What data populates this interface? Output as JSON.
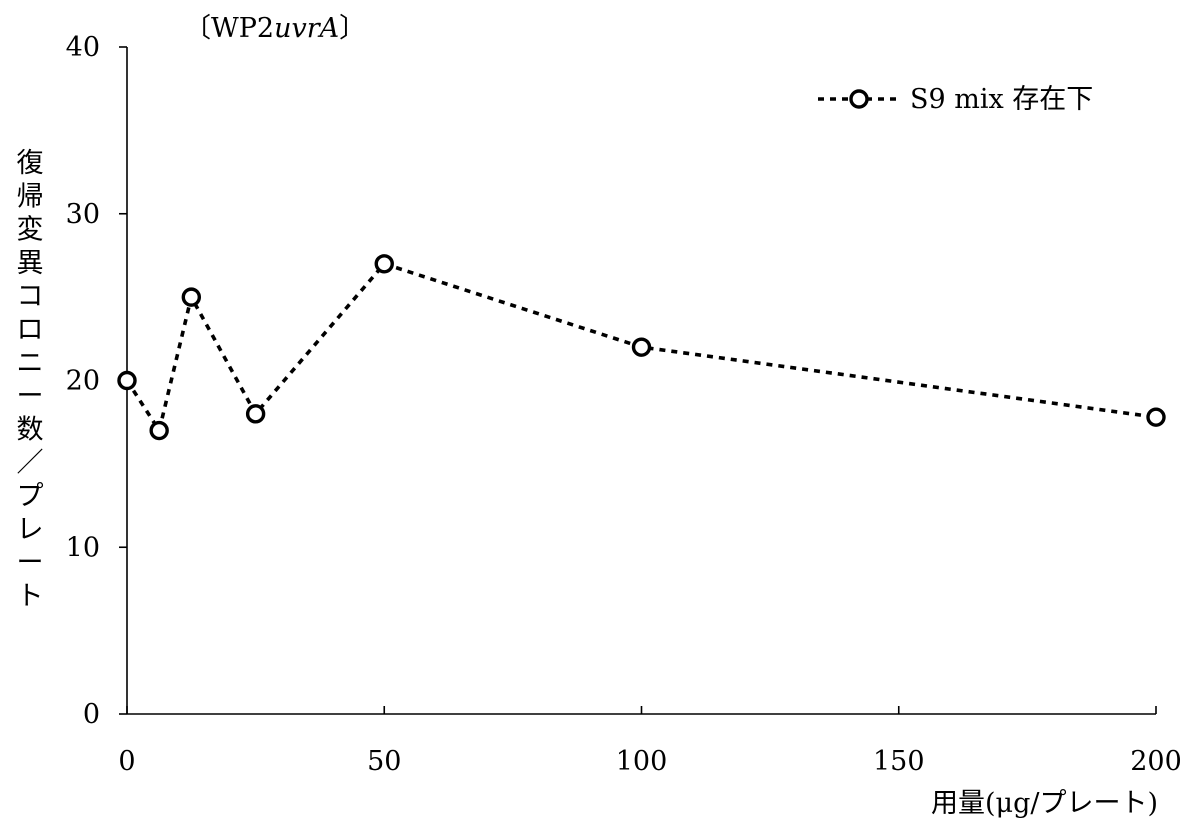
{
  "chart_data": {
    "type": "line",
    "title": "〔WP2uvrA〕",
    "title_parts": {
      "bracket_open": "〔",
      "strain": "WP2",
      "gene": "uvrA",
      "bracket_close": "〕"
    },
    "xlabel": "用量(μg/プレート)",
    "ylabel": "復帰変異コロニー数/プレート",
    "ylabel_chars": [
      "復",
      "帰",
      "変",
      "異",
      "コ",
      "ロ",
      "ニ",
      "ー",
      "数",
      "／",
      "プ",
      "レ",
      "ー",
      "ト"
    ],
    "xlim": [
      0,
      200
    ],
    "ylim": [
      0,
      40
    ],
    "x_ticks": [
      0,
      50,
      100,
      150,
      200
    ],
    "x_tick_labels": [
      "0",
      "50",
      "100",
      "150",
      "200"
    ],
    "y_ticks": [
      0,
      10,
      20,
      30,
      40
    ],
    "y_tick_labels": [
      "0",
      "10",
      "20",
      "30",
      "40"
    ],
    "grid": false,
    "legend_position": "top-right",
    "series": [
      {
        "name": "S9 mix 存在下",
        "line_style": "dotted",
        "marker": "open-circle",
        "color": "#000000",
        "x": [
          0,
          6.25,
          12.5,
          25,
          50,
          100,
          200
        ],
        "y": [
          20,
          17,
          25,
          18,
          27,
          22,
          17.8
        ]
      }
    ]
  }
}
